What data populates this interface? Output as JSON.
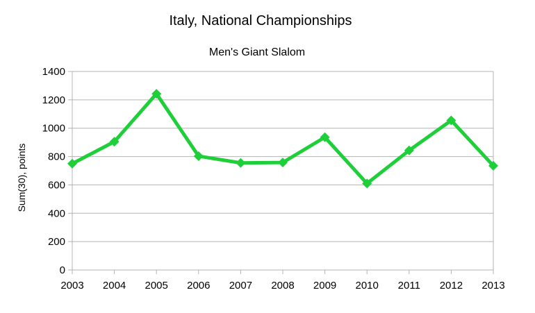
{
  "chart_data": {
    "type": "line",
    "title": "Italy, National Championships",
    "subtitle": "Men's Giant Slalom",
    "xlabel": "",
    "ylabel": "Sum(30), points",
    "x": [
      "2003",
      "2004",
      "2005",
      "2006",
      "2007",
      "2008",
      "2009",
      "2010",
      "2011",
      "2012",
      "2013"
    ],
    "series": [
      {
        "values": [
          750,
          905,
          1243,
          803,
          755,
          758,
          936,
          610,
          843,
          1055,
          735
        ],
        "color": "#1ecf3a",
        "marker": "diamond"
      }
    ],
    "ylim": [
      0,
      1400
    ],
    "yticks": [
      "0",
      "200",
      "400",
      "600",
      "800",
      "1000",
      "1200",
      "1400"
    ],
    "grid": true,
    "gridColor": "#b3b3b3",
    "legend": "none"
  }
}
